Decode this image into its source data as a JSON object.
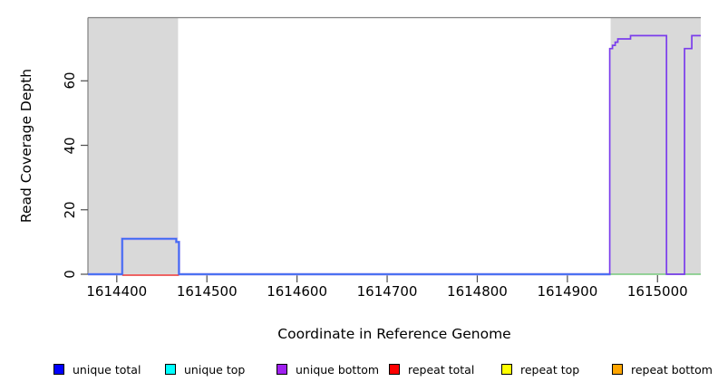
{
  "chart_data": {
    "type": "line",
    "subtype": "step-coverage",
    "title": "",
    "xlabel": "Coordinate in Reference Genome",
    "ylabel": "Read Coverage Depth",
    "xlim": [
      1614368,
      1615048
    ],
    "ylim": [
      0,
      79.6
    ],
    "xticks": [
      1614400,
      1614500,
      1614600,
      1614700,
      1614800,
      1614900,
      1615000
    ],
    "yticks": [
      0,
      20,
      40,
      60
    ],
    "grid": false,
    "frame_color": "#808080",
    "tick_color": "#4d4d4d",
    "highlight_regions": [
      {
        "x0": 1614368,
        "x1": 1614468,
        "color": "#d9d9d9"
      },
      {
        "x0": 1614948,
        "x1": 1615048,
        "color": "#d9d9d9"
      }
    ],
    "curves": [
      {
        "name": "unique-total-halo",
        "color": "#a89af0",
        "width": 2.8,
        "dy": 0,
        "points": [
          [
            1614368,
            0
          ],
          [
            1614406,
            0
          ],
          [
            1614406,
            11
          ],
          [
            1614466,
            11
          ],
          [
            1614466,
            10
          ],
          [
            1614469,
            10
          ],
          [
            1614469,
            0
          ],
          [
            1614948,
            0
          ]
        ]
      },
      {
        "name": "repeat total",
        "color": "#e83030",
        "width": 1.5,
        "dy": 1,
        "points": [
          [
            1614406,
            0
          ],
          [
            1614469,
            0
          ]
        ]
      },
      {
        "name": "strand-overlap-baseline",
        "color": "#76c97c",
        "width": 1.6,
        "dy": 0,
        "points": [
          [
            1614948,
            0
          ],
          [
            1615048,
            0
          ]
        ]
      },
      {
        "name": "unique total",
        "color": "#3e6cf2",
        "width": 1.7,
        "dy": 0,
        "points": [
          [
            1614368,
            0
          ],
          [
            1614406,
            0
          ],
          [
            1614406,
            11
          ],
          [
            1614466,
            11
          ],
          [
            1614466,
            10
          ],
          [
            1614469,
            10
          ],
          [
            1614469,
            0
          ],
          [
            1614948,
            0
          ]
        ]
      },
      {
        "name": "unique bottom",
        "color": "#7a3cec",
        "width": 1.7,
        "dy": 0,
        "points": [
          [
            1614947,
            0
          ],
          [
            1614947,
            70
          ],
          [
            1614950,
            70
          ],
          [
            1614950,
            71
          ],
          [
            1614953,
            71
          ],
          [
            1614953,
            72
          ],
          [
            1614956,
            72
          ],
          [
            1614956,
            73
          ],
          [
            1614970,
            73
          ],
          [
            1614970,
            74
          ],
          [
            1615010,
            74
          ],
          [
            1615010,
            0
          ],
          [
            1615030,
            0
          ],
          [
            1615030,
            70
          ],
          [
            1615038,
            70
          ],
          [
            1615038,
            74
          ],
          [
            1615048,
            74
          ]
        ]
      }
    ],
    "legend": {
      "position": "bottom",
      "items": [
        {
          "label": "unique total",
          "color": "#0000ff"
        },
        {
          "label": "unique top",
          "color": "#00ffff"
        },
        {
          "label": "unique bottom",
          "color": "#a020f0"
        },
        {
          "label": "repeat total",
          "color": "#ff0000"
        },
        {
          "label": "repeat top",
          "color": "#ffff00"
        },
        {
          "label": "repeat bottom",
          "color": "#ffa500"
        }
      ]
    }
  }
}
